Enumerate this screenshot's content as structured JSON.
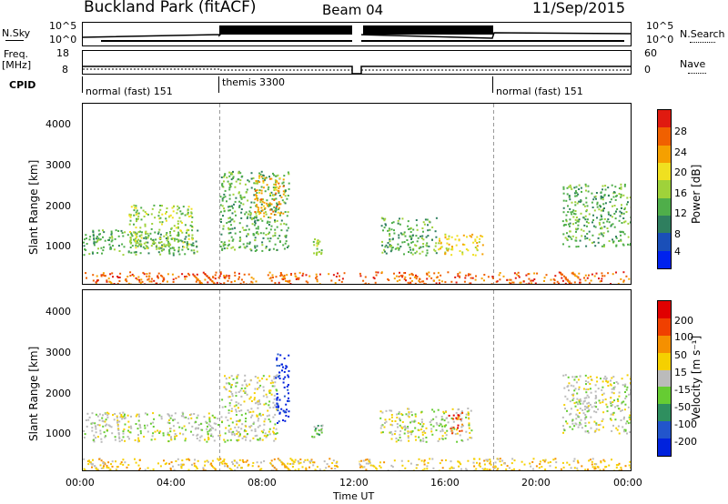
{
  "header": {
    "station": "Buckland Park (fitACF)",
    "beam": "Beam 04",
    "date": "11/Sep/2015"
  },
  "top_panels": {
    "nsky_label": "N.Sky",
    "nsky_ticks": [
      "10^5",
      "10^0"
    ],
    "nsearch_label": "N.Search",
    "nsearch_ticks": [
      "10^5",
      "10^0"
    ],
    "freq_label": "Freq.",
    "freq_unit": "[MHz]",
    "freq_ticks": [
      "18",
      "8"
    ],
    "nave_label": "Nave",
    "nave_ticks": [
      "60",
      "0"
    ],
    "cpid_label": "CPID",
    "cpid_segments": [
      {
        "name": "normal (fast) 151",
        "start_hour": 0,
        "end_hour": 6
      },
      {
        "name": "themis 3300",
        "start_hour": 6,
        "end_hour": 18
      },
      {
        "name": "normal (fast) 151",
        "start_hour": 18,
        "end_hour": 24
      }
    ]
  },
  "axes": {
    "ylabel": "Slant Range [km]",
    "yticks": [
      "1000",
      "2000",
      "3000",
      "4000"
    ],
    "xticks": [
      "00:00",
      "04:00",
      "08:00",
      "12:00",
      "16:00",
      "20:00",
      "00:00"
    ],
    "xlabel": "Time UT"
  },
  "power_colorbar": {
    "label": "Power [dB]",
    "ticks": [
      "28",
      "24",
      "20",
      "16",
      "12",
      "8",
      "4"
    ],
    "colors": [
      "#0022ee",
      "#1a4fb8",
      "#2f7f5f",
      "#4fae4a",
      "#9fd23a",
      "#f0e020",
      "#f5a000",
      "#f06000",
      "#e01a10"
    ]
  },
  "velocity_colorbar": {
    "label": "Velocity [m s⁻¹]",
    "ticks": [
      "200",
      "100",
      "50",
      "15",
      "-15",
      "-50",
      "-100",
      "-200"
    ],
    "colors": [
      "#0022dd",
      "#2255cc",
      "#2f8f5f",
      "#66cc33",
      "#bbbbbb",
      "#f5d000",
      "#f59000",
      "#f04000",
      "#e00000"
    ]
  },
  "chart_data": {
    "type": "heatmap",
    "x_range_hours": [
      0,
      24
    ],
    "y_range_km": [
      200,
      4500
    ],
    "data_gaps_hours": [
      [
        11.5,
        12.1
      ]
    ],
    "panels": [
      {
        "name": "power",
        "blobs": [
          {
            "t0": 0.0,
            "t1": 5.0,
            "r0": 900,
            "r1": 1500,
            "level": 3
          },
          {
            "t0": 2.0,
            "t1": 4.8,
            "r0": 1000,
            "r1": 2100,
            "level": 4
          },
          {
            "t0": 6.0,
            "t1": 9.0,
            "r0": 1000,
            "r1": 2900,
            "level": 3
          },
          {
            "t0": 7.5,
            "t1": 8.8,
            "r0": 1800,
            "r1": 2800,
            "level": 6
          },
          {
            "t0": 10.0,
            "t1": 10.5,
            "r0": 900,
            "r1": 1300,
            "level": 4
          },
          {
            "t0": 13.0,
            "t1": 15.5,
            "r0": 900,
            "r1": 1800,
            "level": 3
          },
          {
            "t0": 15.5,
            "t1": 17.5,
            "r0": 900,
            "r1": 1400,
            "level": 5
          },
          {
            "t0": 21.0,
            "t1": 24.0,
            "r0": 1100,
            "r1": 2600,
            "level": 3
          },
          {
            "t0": 0.0,
            "t1": 24.0,
            "r0": 200,
            "r1": 500,
            "level": 7
          }
        ]
      },
      {
        "name": "velocity",
        "blobs": [
          {
            "t0": 0.0,
            "t1": 6.0,
            "r0": 900,
            "r1": 1600,
            "level": 4
          },
          {
            "t0": 6.0,
            "t1": 8.5,
            "r0": 900,
            "r1": 2500,
            "level": 4
          },
          {
            "t0": 8.4,
            "t1": 9.0,
            "r0": 1300,
            "r1": 3000,
            "level": 0
          },
          {
            "t0": 10.0,
            "t1": 10.5,
            "r0": 1000,
            "r1": 1300,
            "level": 3
          },
          {
            "t0": 13.0,
            "t1": 17.0,
            "r0": 900,
            "r1": 1700,
            "level": 4
          },
          {
            "t0": 16.0,
            "t1": 16.6,
            "r0": 1100,
            "r1": 1600,
            "level": 7
          },
          {
            "t0": 21.0,
            "t1": 24.0,
            "r0": 1100,
            "r1": 2500,
            "level": 4
          },
          {
            "t0": 0.0,
            "t1": 24.0,
            "r0": 200,
            "r1": 500,
            "level": 5
          }
        ]
      }
    ]
  }
}
